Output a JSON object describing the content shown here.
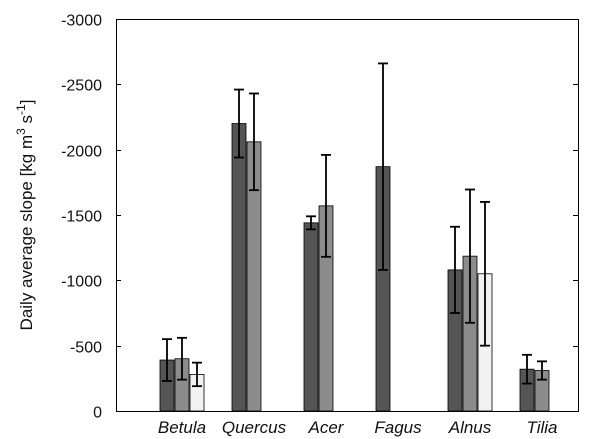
{
  "chart_data": {
    "type": "bar",
    "ylabel": "Daily average slope [kg m-3 s-1]",
    "ylabel_parts": {
      "pre": "Daily average slope [kg m",
      "sup1": "3",
      "mid": " s",
      "sup2": "-1",
      "post": "]"
    },
    "ylim": [
      0,
      -3000
    ],
    "yticks": [
      0,
      -500,
      -1000,
      -1500,
      -2000,
      -2500,
      -3000
    ],
    "ytick_labels": [
      "0",
      "-500",
      "-1000",
      "-1500",
      "-2000",
      "-2500",
      "-3000"
    ],
    "grid": false,
    "categories": [
      "Betula",
      "Quercus",
      "Acer",
      "Fagus",
      "Alnus",
      "Tilia"
    ],
    "series_colors": [
      "#555555",
      "#8c8c8c",
      "#f2f2f2"
    ],
    "series": [
      {
        "values": [
          -390,
          -2200,
          -1440,
          -1870,
          -1080,
          -320
        ],
        "errors": [
          160,
          260,
          50,
          790,
          330,
          110
        ]
      },
      {
        "values": [
          -400,
          -2060,
          -1570,
          null,
          -1185,
          -310
        ],
        "errors": [
          160,
          370,
          390,
          null,
          510,
          70
        ]
      },
      {
        "values": [
          -280,
          null,
          null,
          null,
          -1050,
          null
        ],
        "errors": [
          90,
          null,
          null,
          null,
          550,
          null
        ]
      }
    ]
  }
}
